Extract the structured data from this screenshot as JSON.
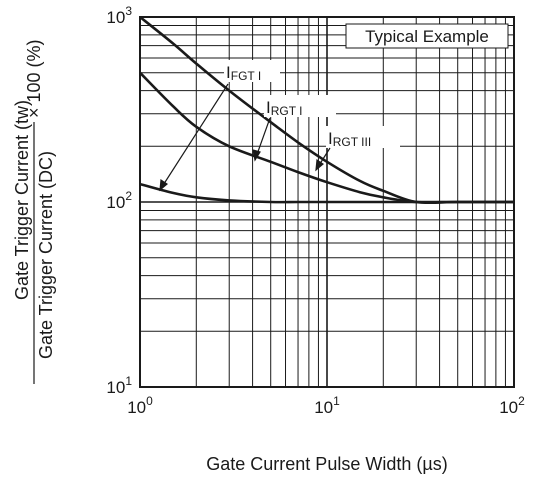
{
  "chart_data": {
    "type": "line",
    "xscale": "log",
    "yscale": "log",
    "xlim": [
      1,
      100
    ],
    "ylim": [
      10,
      1000
    ],
    "grid": true,
    "x_ticks": [
      {
        "base": "10",
        "exp": "0"
      },
      {
        "base": "10",
        "exp": "1"
      },
      {
        "base": "10",
        "exp": "2"
      }
    ],
    "y_ticks": [
      {
        "base": "10",
        "exp": "1"
      },
      {
        "base": "10",
        "exp": "2"
      },
      {
        "base": "10",
        "exp": "3"
      }
    ],
    "xlabel": "Gate Current Pulse Width  (µs)",
    "ylabel": {
      "num_prefix": "Gate Trigger Current",
      "num_suffix": "(tw)",
      "den_prefix": "Gate Trigger Current",
      "den_suffix": "(DC)",
      "multiplier": "× 100 (%)"
    },
    "annotation": "Typical Example",
    "series": [
      {
        "name": {
          "main": "I",
          "sub": "FGT I"
        },
        "x": [
          1,
          1.5,
          2,
          3,
          5,
          7,
          10,
          15,
          20,
          30,
          50,
          100
        ],
        "y": [
          1000,
          720,
          560,
          400,
          270,
          210,
          165,
          130,
          115,
          100,
          100,
          100
        ]
      },
      {
        "name": {
          "main": "I",
          "sub": "RGT I"
        },
        "x": [
          1,
          1.5,
          2,
          3,
          5,
          7,
          10,
          15,
          20,
          30,
          50,
          100
        ],
        "y": [
          500,
          330,
          255,
          200,
          165,
          145,
          128,
          113,
          106,
          100,
          100,
          100
        ]
      },
      {
        "name": {
          "main": "I",
          "sub": "RGT III"
        },
        "x": [
          1,
          1.5,
          2,
          3,
          5,
          7,
          10,
          15,
          20,
          30,
          50,
          100
        ],
        "y": [
          125,
          112,
          106,
          102,
          100,
          100,
          100,
          100,
          100,
          100,
          100,
          100
        ]
      }
    ]
  }
}
